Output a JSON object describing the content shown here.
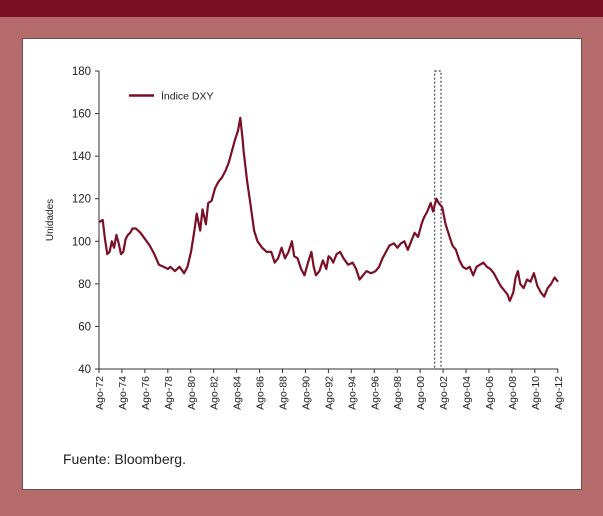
{
  "source_note": "Fuente: Bloomberg.",
  "colors": {
    "header_bar": "#7a0f25",
    "frame": "#b56b6b",
    "series": "#7a0f25"
  },
  "chart_data": {
    "type": "line",
    "ylabel": "Unidades",
    "ylim": [
      40,
      180
    ],
    "yticks": [
      40,
      60,
      80,
      100,
      120,
      140,
      160,
      180
    ],
    "xlim": [
      1972.58,
      2012.6
    ],
    "xticks": [
      "Ago-72",
      "Ago-74",
      "Ago-76",
      "Ago-78",
      "Ago-80",
      "Ago-82",
      "Ago-84",
      "Ago-86",
      "Ago-88",
      "Ago-90",
      "Ago-92",
      "Ago-94",
      "Ago-96",
      "Ago-98",
      "Ago-00",
      "Ago-02",
      "Ago-04",
      "Ago-06",
      "Ago-08",
      "Ago-10",
      "Ago-12"
    ],
    "legend": "top-left",
    "series": [
      {
        "name": "Índice DXY",
        "x": [
          1972.6,
          1972.9,
          1973.1,
          1973.3,
          1973.5,
          1973.7,
          1973.9,
          1974.1,
          1974.3,
          1974.5,
          1974.7,
          1974.9,
          1975.1,
          1975.3,
          1975.5,
          1975.8,
          1976.2,
          1976.6,
          1977.0,
          1977.4,
          1977.8,
          1978.2,
          1978.6,
          1978.8,
          1979.2,
          1979.6,
          1980.0,
          1980.3,
          1980.6,
          1980.9,
          1981.1,
          1981.4,
          1981.6,
          1981.9,
          1982.1,
          1982.4,
          1982.7,
          1983.0,
          1983.3,
          1983.6,
          1983.9,
          1984.1,
          1984.4,
          1984.7,
          1984.9,
          1985.1,
          1985.2,
          1985.5,
          1985.8,
          1986.1,
          1986.4,
          1986.8,
          1987.2,
          1987.6,
          1987.9,
          1988.2,
          1988.5,
          1988.8,
          1989.1,
          1989.4,
          1989.6,
          1989.9,
          1990.2,
          1990.5,
          1990.8,
          1991.1,
          1991.3,
          1991.5,
          1991.8,
          1992.1,
          1992.4,
          1992.6,
          1992.8,
          1993.0,
          1993.3,
          1993.6,
          1993.9,
          1994.3,
          1994.7,
          1995.0,
          1995.3,
          1995.6,
          1995.9,
          1996.3,
          1996.7,
          1997.0,
          1997.3,
          1997.6,
          1997.9,
          1998.3,
          1998.6,
          1998.9,
          1999.2,
          1999.5,
          1999.8,
          2000.1,
          2000.4,
          2000.7,
          2000.9,
          2001.2,
          2001.5,
          2001.7,
          2002.0,
          2002.2,
          2002.5,
          2002.8,
          2003.1,
          2003.4,
          2003.7,
          2004.0,
          2004.3,
          2004.6,
          2004.9,
          2005.2,
          2005.5,
          2005.8,
          2006.1,
          2006.4,
          2006.7,
          2007.0,
          2007.3,
          2007.6,
          2007.9,
          2008.2,
          2008.4,
          2008.7,
          2008.9,
          2009.1,
          2009.3,
          2009.6,
          2009.9,
          2010.2,
          2010.5,
          2010.8,
          2011.1,
          2011.4,
          2011.7,
          2012.0,
          2012.3,
          2012.6
        ],
        "y": [
          109,
          110,
          101,
          94,
          95,
          100,
          97,
          103,
          99,
          94,
          95,
          101,
          103,
          104,
          106,
          106,
          104,
          101,
          98,
          94,
          89,
          88,
          87,
          88,
          86,
          88,
          85,
          88,
          95,
          105,
          113,
          105,
          115,
          108,
          118,
          119,
          125,
          128,
          130,
          133,
          137,
          141,
          147,
          152,
          158,
          148,
          142,
          128,
          117,
          105,
          100,
          97,
          95,
          95,
          90,
          92,
          97,
          92,
          95,
          100,
          93,
          92,
          87,
          84,
          90,
          95,
          88,
          84,
          86,
          91,
          87,
          93,
          92,
          90,
          94,
          95,
          92,
          89,
          90,
          87,
          82,
          84,
          86,
          85,
          86,
          88,
          92,
          95,
          98,
          99,
          97,
          99,
          100,
          96,
          100,
          104,
          102,
          108,
          111,
          114,
          118,
          114,
          120,
          118,
          116,
          108,
          103,
          98,
          96,
          91,
          88,
          87,
          88,
          84,
          88,
          89,
          90,
          88,
          87,
          85,
          82,
          79,
          77,
          75,
          72,
          76,
          83,
          86,
          80,
          78,
          82,
          81,
          85,
          79,
          76,
          74,
          78,
          80,
          83,
          81
        ]
      }
    ]
  }
}
